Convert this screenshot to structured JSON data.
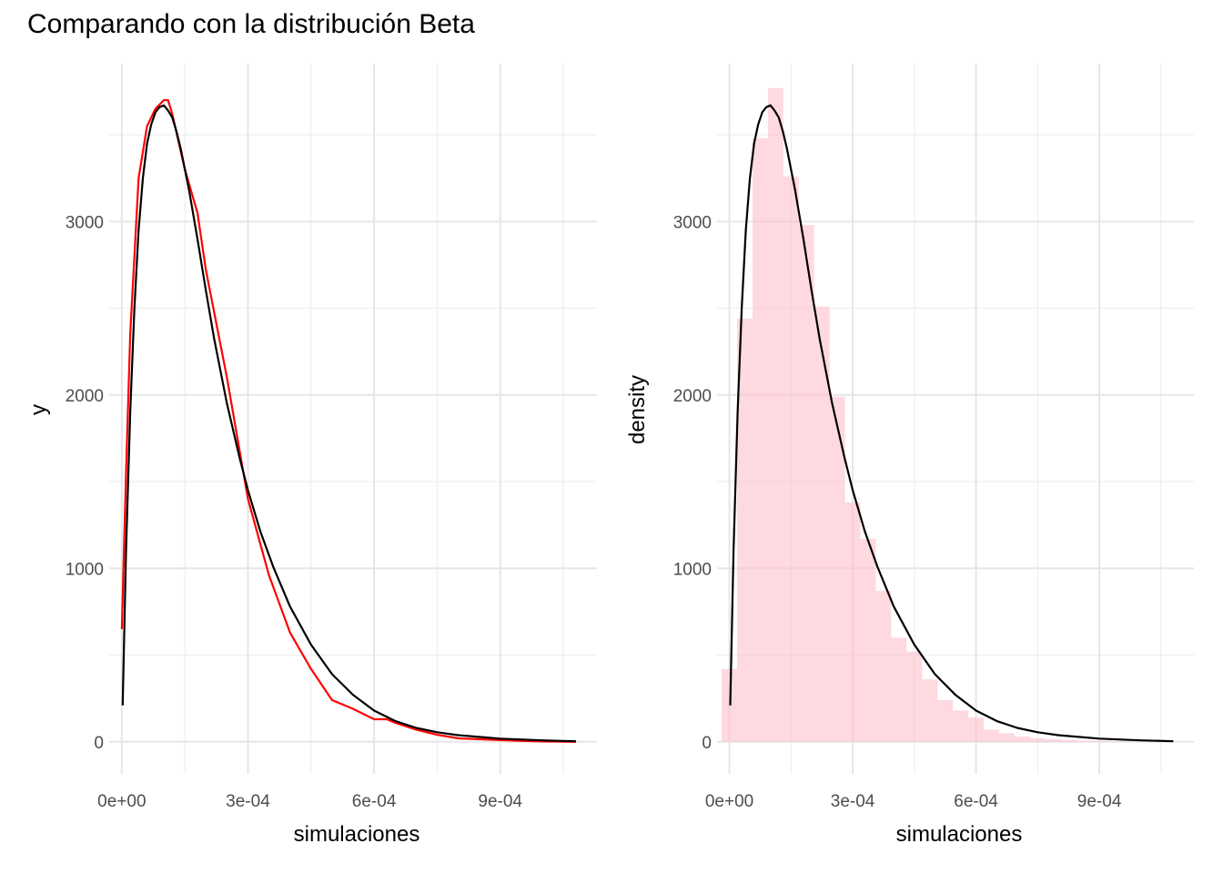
{
  "title": "Comparando con la distribución Beta",
  "chart_data": [
    {
      "type": "line",
      "panel": "left",
      "xlabel": "simulaciones",
      "ylabel": "y",
      "xlim": [
        -3e-05,
        0.00113
      ],
      "ylim": [
        -185,
        3910
      ],
      "x_ticks": [
        0,
        0.0003,
        0.0006,
        0.0009
      ],
      "x_tick_labels": [
        "0e+00",
        "3e-04",
        "6e-04",
        "9e-04"
      ],
      "y_ticks": [
        0,
        1000,
        2000,
        3000
      ],
      "y_tick_labels": [
        "0",
        "1000",
        "2000",
        "3000"
      ],
      "grid": true,
      "series": [
        {
          "color": "#ff0000",
          "x": [
            0,
            1e-05,
            2e-05,
            4e-05,
            6e-05,
            8e-05,
            0.0001,
            0.00011,
            0.00012,
            0.00015,
            0.00018,
            0.0002,
            0.00025,
            0.0003,
            0.00035,
            0.0004,
            0.00045,
            0.0005,
            0.00055,
            0.0006,
            0.00063,
            0.00065,
            0.0007,
            0.00075,
            0.0008,
            0.00085,
            0.0009,
            0.00095,
            0.001,
            0.00108
          ],
          "y": [
            650,
            1550,
            2350,
            3250,
            3550,
            3650,
            3700,
            3700,
            3620,
            3300,
            3050,
            2720,
            2100,
            1400,
            960,
            630,
            420,
            240,
            190,
            130,
            130,
            110,
            70,
            40,
            20,
            15,
            10,
            5,
            2,
            0
          ]
        },
        {
          "color": "#000000",
          "x": [
            2e-06,
            1e-05,
            2e-05,
            3e-05,
            4e-05,
            5e-05,
            6e-05,
            7e-05,
            8e-05,
            9e-05,
            0.0001,
            0.00011,
            0.00012,
            0.00013,
            0.00014,
            0.00015,
            0.00016,
            0.00018,
            0.0002,
            0.00022,
            0.00025,
            0.00028,
            0.0003,
            0.00033,
            0.00036,
            0.0004,
            0.00045,
            0.0005,
            0.00055,
            0.0006,
            0.00065,
            0.0007,
            0.00075,
            0.0008,
            0.0009,
            0.001,
            0.00108
          ],
          "y": [
            210,
            1100,
            1900,
            2500,
            2950,
            3250,
            3450,
            3560,
            3630,
            3660,
            3670,
            3640,
            3600,
            3520,
            3420,
            3300,
            3180,
            2900,
            2600,
            2320,
            1950,
            1640,
            1450,
            1210,
            1010,
            780,
            560,
            390,
            270,
            180,
            120,
            80,
            55,
            38,
            18,
            8,
            3
          ]
        }
      ]
    },
    {
      "type": "bar",
      "panel": "right",
      "xlabel": "simulaciones",
      "ylabel": "density",
      "xlim": [
        -3e-05,
        0.00113
      ],
      "ylim": [
        -185,
        3910
      ],
      "x_ticks": [
        0,
        0.0003,
        0.0006,
        0.0009
      ],
      "x_tick_labels": [
        "0e+00",
        "3e-04",
        "6e-04",
        "9e-04"
      ],
      "y_ticks": [
        0,
        1000,
        2000,
        3000
      ],
      "y_tick_labels": [
        "0",
        "1000",
        "2000",
        "3000"
      ],
      "grid": true,
      "bar_color": "#ffc0cb",
      "histogram": {
        "bin_width": 3.75e-05,
        "bin_start": -1.875e-05,
        "densities": [
          420,
          2440,
          3480,
          3770,
          3260,
          2980,
          2510,
          1990,
          1380,
          1170,
          870,
          600,
          520,
          360,
          240,
          180,
          140,
          70,
          50,
          30,
          20,
          15,
          10,
          7,
          5,
          3,
          2,
          1
        ]
      },
      "series": [
        {
          "color": "#000000",
          "x": [
            2e-06,
            1e-05,
            2e-05,
            3e-05,
            4e-05,
            5e-05,
            6e-05,
            7e-05,
            8e-05,
            9e-05,
            0.0001,
            0.00011,
            0.00012,
            0.00013,
            0.00014,
            0.00015,
            0.00016,
            0.00018,
            0.0002,
            0.00022,
            0.00025,
            0.00028,
            0.0003,
            0.00033,
            0.00036,
            0.0004,
            0.00045,
            0.0005,
            0.00055,
            0.0006,
            0.00065,
            0.0007,
            0.00075,
            0.0008,
            0.0009,
            0.001,
            0.00108
          ],
          "y": [
            210,
            1100,
            1900,
            2500,
            2950,
            3250,
            3450,
            3560,
            3630,
            3660,
            3670,
            3640,
            3600,
            3520,
            3420,
            3300,
            3180,
            2900,
            2600,
            2320,
            1950,
            1640,
            1450,
            1210,
            1010,
            780,
            560,
            390,
            270,
            180,
            120,
            80,
            55,
            38,
            18,
            8,
            3
          ]
        }
      ]
    }
  ]
}
